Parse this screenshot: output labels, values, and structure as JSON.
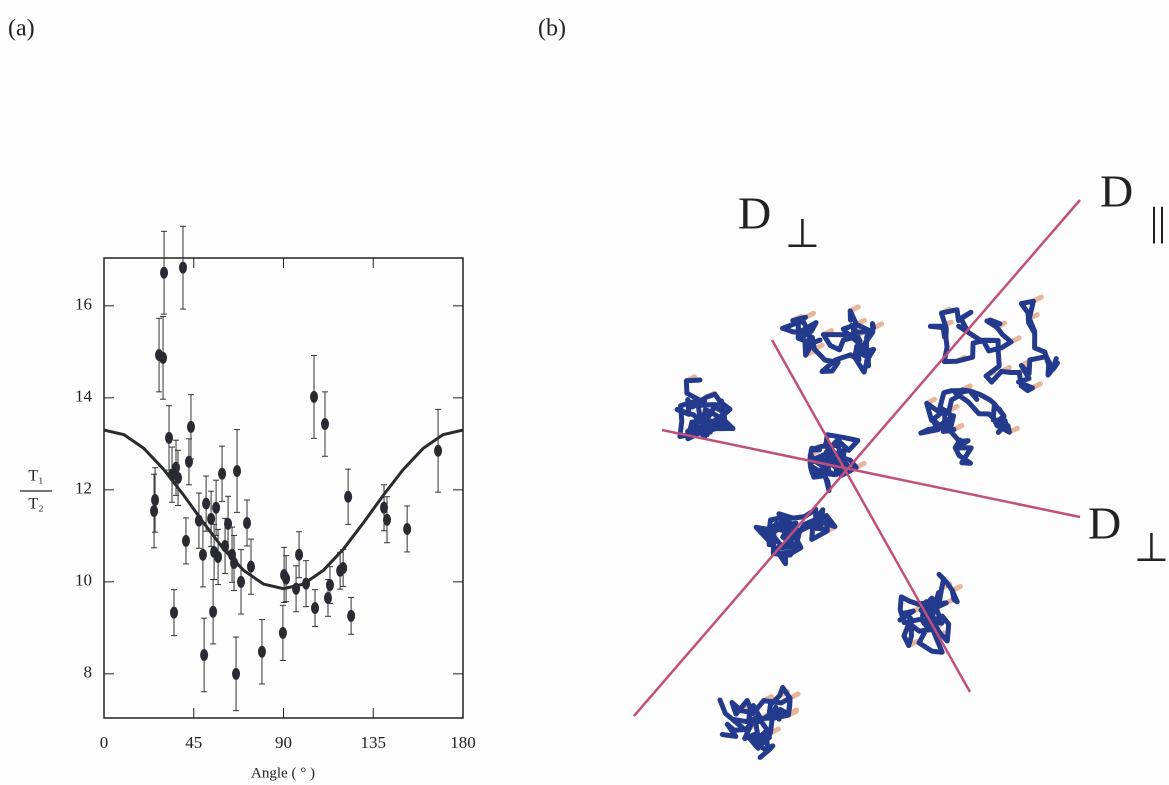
{
  "chart_data": {
    "type": "scatter",
    "panel_label": "(a)",
    "ylabel": {
      "numerator": "T₁",
      "denominator": "T₂"
    },
    "xlabel": "Angle ( ° )",
    "xlim": [
      0,
      180
    ],
    "xticks": [
      0,
      45,
      90,
      135,
      180
    ],
    "ylim": [
      7.04,
      17.04
    ],
    "yticks": [
      8,
      10,
      12,
      14,
      16
    ],
    "color": "#2a2a33",
    "points": {
      "x": [
        25.1,
        25.6,
        27.6,
        29.6,
        30.1,
        32.6,
        34.1,
        35.1,
        36.1,
        37.1,
        39.6,
        41.1,
        42.6,
        43.6,
        47.6,
        49.6,
        50.2,
        51.2,
        53.7,
        54.7,
        55.2,
        56.2,
        57.2,
        59.2,
        60.7,
        62.2,
        64.2,
        65.2,
        66.2,
        66.7,
        68.7,
        71.7,
        73.7,
        79.2,
        89.7,
        90.3,
        91.3,
        96.3,
        97.8,
        101.3,
        105.3,
        105.8,
        110.8,
        112.3,
        113.3,
        118.4,
        119.9,
        122.4,
        123.9,
        140.4,
        141.9,
        152.0,
        167.5
      ],
      "values": [
        11.54,
        11.78,
        14.93,
        14.87,
        16.72,
        13.13,
        12.33,
        9.33,
        12.48,
        12.26,
        16.83,
        10.89,
        12.61,
        13.37,
        11.33,
        10.59,
        8.41,
        11.7,
        11.37,
        9.35,
        10.65,
        11.61,
        10.54,
        12.35,
        10.78,
        11.26,
        10.59,
        10.41,
        8.0,
        12.41,
        10.0,
        11.28,
        10.33,
        8.48,
        8.89,
        10.15,
        10.07,
        9.85,
        10.59,
        9.96,
        14.02,
        9.43,
        13.43,
        9.65,
        9.93,
        10.24,
        10.3,
        11.85,
        9.26,
        11.61,
        11.35,
        11.15,
        12.85
      ],
      "errors": [
        0.8,
        0.7,
        0.8,
        0.9,
        0.9,
        0.7,
        0.6,
        0.5,
        0.6,
        0.6,
        0.9,
        0.5,
        0.5,
        0.7,
        0.6,
        0.7,
        0.8,
        0.6,
        0.6,
        0.7,
        0.6,
        0.6,
        0.6,
        0.6,
        0.6,
        0.6,
        0.6,
        0.6,
        0.8,
        0.9,
        0.7,
        0.5,
        0.6,
        0.7,
        0.6,
        0.6,
        0.5,
        0.5,
        0.5,
        0.5,
        0.9,
        0.4,
        0.7,
        0.4,
        0.4,
        0.4,
        0.4,
        0.6,
        0.4,
        0.5,
        0.5,
        0.5,
        0.9
      ]
    },
    "fit": {
      "x": [
        0,
        10,
        20,
        30,
        40,
        50,
        60,
        70,
        80,
        90,
        100,
        110,
        120,
        130,
        140,
        150,
        160,
        170,
        180
      ],
      "values": [
        13.3,
        13.2,
        12.9,
        12.44,
        11.88,
        11.28,
        10.71,
        10.25,
        9.95,
        9.85,
        9.95,
        10.25,
        10.71,
        11.28,
        11.88,
        12.44,
        12.9,
        13.2,
        13.3
      ]
    }
  },
  "panel_b": {
    "panel_label": "(b)",
    "axes": [
      {
        "symbol": "D",
        "subscript": "⊥"
      },
      {
        "symbol": "D",
        "subscript": "||"
      },
      {
        "symbol": "D",
        "subscript": "⊥"
      }
    ]
  }
}
